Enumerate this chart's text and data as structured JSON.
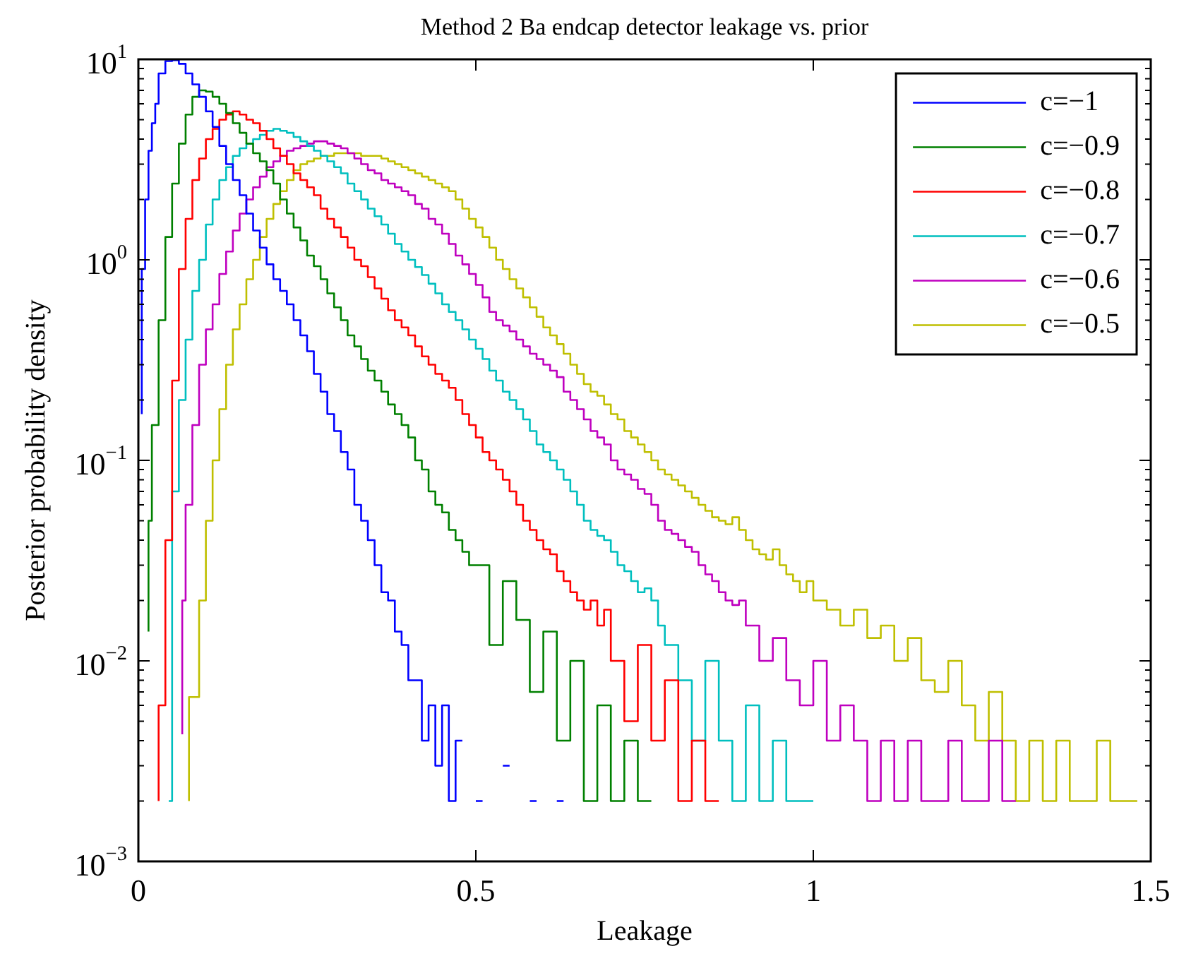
{
  "chart_data": {
    "type": "step",
    "title": "Method 2 Ba endcap detector leakage vs. prior",
    "xlabel": "Leakage",
    "ylabel": "Posterior probability density",
    "log": "y",
    "grid": false,
    "legend": "top right",
    "xlim": [
      0,
      1.5
    ],
    "xticks": [
      0,
      0.5,
      1,
      1.5
    ],
    "ylim": [
      0.001,
      10
    ],
    "yticks": [
      {
        "value": 0.001,
        "label": "10$^{−3}$"
      },
      {
        "value": 0.01,
        "label": "10$^{−2}$"
      },
      {
        "value": 0.1,
        "label": "10$^{−1}$"
      },
      {
        "value": 1,
        "label": "10$^{0}$"
      },
      {
        "value": 10,
        "label": "10$^{1}$"
      }
    ],
    "series": [
      {
        "name": "c=−1",
        "color": "#0000ff",
        "x": [
          0.005,
          0.01,
          0.015,
          0.02,
          0.025,
          0.03,
          0.04,
          0.05,
          0.06,
          0.07,
          0.08,
          0.09,
          0.1,
          0.11,
          0.12,
          0.13,
          0.14,
          0.15,
          0.16,
          0.17,
          0.18,
          0.19,
          0.2,
          0.21,
          0.22,
          0.23,
          0.24,
          0.25,
          0.26,
          0.27,
          0.28,
          0.29,
          0.3,
          0.31,
          0.32,
          0.33,
          0.34,
          0.35,
          0.36,
          0.37,
          0.38,
          0.39,
          0.4,
          0.41,
          0.42,
          0.43,
          0.44,
          0.45,
          0.46,
          0.47,
          0.48,
          0.49,
          0.5,
          0.51,
          0.52,
          0.54,
          0.55,
          0.56,
          0.58,
          0.59,
          0.6,
          0.62,
          0.63
        ],
        "values": [
          0.17,
          0.9,
          2.0,
          3.5,
          4.8,
          6,
          8.5,
          9.8,
          9.9,
          9.5,
          8.5,
          7.5,
          6.5,
          5.5,
          4.6,
          3.7,
          3.0,
          2.5,
          2.1,
          1.7,
          1.4,
          1.15,
          0.95,
          0.8,
          0.7,
          0.6,
          0.5,
          0.42,
          0.35,
          0.27,
          0.22,
          0.17,
          0.14,
          0.11,
          0.09,
          0.06,
          0.05,
          0.04,
          0.03,
          0.022,
          0.02,
          0.014,
          0.012,
          0.008,
          0.008,
          0.004,
          0.006,
          0.003,
          0.006,
          0.002,
          0.004,
          null,
          0.002,
          0.002,
          null,
          0.003,
          0.003,
          null,
          0.002,
          0.002,
          null,
          0.002,
          0.002
        ]
      },
      {
        "name": "c=−0.9",
        "color": "#008000",
        "x": [
          0.015,
          0.02,
          0.03,
          0.04,
          0.05,
          0.06,
          0.07,
          0.08,
          0.09,
          0.1,
          0.11,
          0.12,
          0.13,
          0.14,
          0.15,
          0.16,
          0.17,
          0.18,
          0.19,
          0.2,
          0.21,
          0.22,
          0.23,
          0.24,
          0.25,
          0.26,
          0.27,
          0.28,
          0.29,
          0.3,
          0.31,
          0.32,
          0.33,
          0.34,
          0.35,
          0.36,
          0.37,
          0.38,
          0.39,
          0.4,
          0.41,
          0.42,
          0.43,
          0.44,
          0.45,
          0.46,
          0.47,
          0.48,
          0.49,
          0.5,
          0.52,
          0.54,
          0.56,
          0.58,
          0.6,
          0.62,
          0.64,
          0.66,
          0.68,
          0.7,
          0.72,
          0.74,
          0.76
        ],
        "values": [
          0.014,
          0.05,
          0.15,
          0.5,
          1.3,
          2.4,
          3.8,
          5.3,
          6.5,
          7.0,
          6.9,
          6.5,
          6.0,
          5.4,
          4.8,
          4.3,
          3.8,
          3.4,
          3.1,
          2.8,
          2.4,
          2.0,
          1.7,
          1.45,
          1.25,
          1.05,
          0.93,
          0.8,
          0.68,
          0.58,
          0.5,
          0.42,
          0.37,
          0.32,
          0.28,
          0.25,
          0.22,
          0.19,
          0.17,
          0.15,
          0.13,
          0.1,
          0.09,
          0.07,
          0.06,
          0.055,
          0.045,
          0.04,
          0.035,
          0.03,
          0.03,
          0.012,
          0.025,
          0.016,
          0.007,
          0.014,
          0.004,
          0.01,
          0.002,
          0.006,
          0.002,
          0.004,
          0.002
        ]
      },
      {
        "name": "c=−0.8",
        "color": "#ff0000",
        "x": [
          0.03,
          0.04,
          0.05,
          0.06,
          0.07,
          0.08,
          0.09,
          0.1,
          0.11,
          0.12,
          0.13,
          0.14,
          0.15,
          0.16,
          0.17,
          0.18,
          0.19,
          0.2,
          0.21,
          0.22,
          0.23,
          0.24,
          0.25,
          0.26,
          0.27,
          0.28,
          0.29,
          0.3,
          0.31,
          0.32,
          0.33,
          0.34,
          0.35,
          0.36,
          0.37,
          0.38,
          0.39,
          0.4,
          0.41,
          0.42,
          0.43,
          0.44,
          0.45,
          0.46,
          0.47,
          0.48,
          0.49,
          0.5,
          0.51,
          0.52,
          0.53,
          0.54,
          0.55,
          0.56,
          0.57,
          0.58,
          0.59,
          0.6,
          0.61,
          0.62,
          0.63,
          0.64,
          0.65,
          0.66,
          0.67,
          0.68,
          0.69,
          0.7,
          0.72,
          0.74,
          0.76,
          0.78,
          0.8,
          0.82,
          0.84,
          0.86
        ],
        "values": [
          0.002,
          0.006,
          0.04,
          0.25,
          0.9,
          1.6,
          2.5,
          3.2,
          4.0,
          4.5,
          5.0,
          5.3,
          5.5,
          5.3,
          5.0,
          4.8,
          4.4,
          4.0,
          3.6,
          3.3,
          3.0,
          2.7,
          2.5,
          2.3,
          2.1,
          1.8,
          1.6,
          1.45,
          1.3,
          1.15,
          1.0,
          0.93,
          0.82,
          0.72,
          0.64,
          0.56,
          0.5,
          0.46,
          0.42,
          0.37,
          0.33,
          0.3,
          0.27,
          0.25,
          0.23,
          0.2,
          0.17,
          0.15,
          0.13,
          0.11,
          0.1,
          0.09,
          0.08,
          0.07,
          0.06,
          0.05,
          0.045,
          0.04,
          0.036,
          0.034,
          0.028,
          0.025,
          0.022,
          0.02,
          0.018,
          0.02,
          0.015,
          0.018,
          0.01,
          0.005,
          0.012,
          0.004,
          0.008,
          0.002,
          0.004,
          0.002
        ]
      },
      {
        "name": "c=−0.7",
        "color": "#00bfbf",
        "x": [
          0.045,
          0.05,
          0.06,
          0.07,
          0.08,
          0.09,
          0.1,
          0.11,
          0.12,
          0.13,
          0.14,
          0.15,
          0.16,
          0.17,
          0.18,
          0.19,
          0.2,
          0.21,
          0.22,
          0.23,
          0.24,
          0.25,
          0.26,
          0.27,
          0.28,
          0.29,
          0.3,
          0.31,
          0.32,
          0.33,
          0.34,
          0.35,
          0.36,
          0.37,
          0.38,
          0.39,
          0.4,
          0.41,
          0.42,
          0.43,
          0.44,
          0.45,
          0.46,
          0.47,
          0.48,
          0.49,
          0.5,
          0.51,
          0.52,
          0.53,
          0.54,
          0.55,
          0.56,
          0.57,
          0.58,
          0.59,
          0.6,
          0.61,
          0.62,
          0.63,
          0.64,
          0.65,
          0.66,
          0.67,
          0.68,
          0.69,
          0.7,
          0.71,
          0.72,
          0.73,
          0.74,
          0.75,
          0.76,
          0.77,
          0.78,
          0.79,
          0.8,
          0.82,
          0.84,
          0.86,
          0.88,
          0.9,
          0.92,
          0.94,
          0.96,
          0.98,
          1.0
        ],
        "values": [
          0.002,
          0.002,
          0.07,
          0.2,
          0.4,
          0.7,
          1.0,
          1.5,
          2.0,
          2.5,
          2.9,
          3.3,
          3.6,
          3.8,
          4.0,
          4.2,
          4.4,
          4.5,
          4.4,
          4.3,
          4.1,
          3.9,
          3.7,
          3.5,
          3.3,
          3.1,
          2.9,
          2.7,
          2.4,
          2.2,
          2.0,
          1.8,
          1.65,
          1.5,
          1.35,
          1.2,
          1.1,
          1.0,
          0.92,
          0.84,
          0.76,
          0.68,
          0.6,
          0.55,
          0.5,
          0.45,
          0.4,
          0.36,
          0.32,
          0.28,
          0.25,
          0.22,
          0.2,
          0.18,
          0.16,
          0.14,
          0.12,
          0.11,
          0.1,
          0.09,
          0.08,
          0.07,
          0.06,
          0.05,
          0.045,
          0.042,
          0.04,
          0.035,
          0.03,
          0.028,
          0.025,
          0.022,
          0.023,
          0.02,
          0.015,
          0.012,
          0.012,
          0.008,
          0.004,
          0.01,
          0.004,
          0.002,
          0.006,
          0.002,
          0.004,
          0.002,
          0.002
        ]
      },
      {
        "name": "c=−0.6",
        "color": "#bf00bf",
        "x": [
          0.065,
          0.07,
          0.08,
          0.09,
          0.1,
          0.11,
          0.12,
          0.13,
          0.14,
          0.15,
          0.16,
          0.17,
          0.18,
          0.19,
          0.2,
          0.21,
          0.22,
          0.23,
          0.24,
          0.25,
          0.26,
          0.27,
          0.28,
          0.29,
          0.3,
          0.31,
          0.32,
          0.33,
          0.34,
          0.35,
          0.36,
          0.37,
          0.38,
          0.39,
          0.4,
          0.41,
          0.42,
          0.43,
          0.44,
          0.45,
          0.46,
          0.47,
          0.48,
          0.49,
          0.5,
          0.51,
          0.52,
          0.53,
          0.54,
          0.55,
          0.56,
          0.57,
          0.58,
          0.59,
          0.6,
          0.61,
          0.62,
          0.63,
          0.64,
          0.65,
          0.66,
          0.67,
          0.68,
          0.69,
          0.7,
          0.71,
          0.72,
          0.73,
          0.74,
          0.75,
          0.76,
          0.77,
          0.78,
          0.79,
          0.8,
          0.81,
          0.82,
          0.83,
          0.84,
          0.85,
          0.86,
          0.87,
          0.88,
          0.89,
          0.9,
          0.92,
          0.94,
          0.96,
          0.98,
          1.0,
          1.02,
          1.04,
          1.06,
          1.08,
          1.1,
          1.12,
          1.14,
          1.16,
          1.18,
          1.2,
          1.22,
          1.24,
          1.26,
          1.28,
          1.3
        ],
        "values": [
          0.0043,
          0.02,
          0.06,
          0.15,
          0.3,
          0.45,
          0.6,
          0.85,
          1.1,
          1.4,
          1.7,
          2.0,
          2.3,
          2.6,
          2.9,
          3.1,
          3.3,
          3.5,
          3.6,
          3.7,
          3.8,
          3.9,
          3.9,
          3.8,
          3.7,
          3.6,
          3.4,
          3.2,
          3.0,
          2.8,
          2.7,
          2.5,
          2.4,
          2.3,
          2.2,
          2.1,
          1.9,
          1.8,
          1.6,
          1.5,
          1.35,
          1.2,
          1.05,
          0.95,
          0.85,
          0.75,
          0.65,
          0.55,
          0.5,
          0.47,
          0.44,
          0.4,
          0.37,
          0.34,
          0.32,
          0.3,
          0.28,
          0.26,
          0.22,
          0.2,
          0.18,
          0.16,
          0.14,
          0.13,
          0.12,
          0.1,
          0.09,
          0.085,
          0.08,
          0.072,
          0.068,
          0.06,
          0.05,
          0.045,
          0.043,
          0.04,
          0.037,
          0.035,
          0.03,
          0.027,
          0.025,
          0.022,
          0.02,
          0.019,
          0.02,
          0.015,
          0.01,
          0.013,
          0.008,
          0.006,
          0.01,
          0.004,
          0.006,
          0.004,
          0.002,
          0.004,
          0.002,
          0.004,
          0.002,
          0.002,
          0.004,
          0.002,
          0.002,
          0.004,
          0.002
        ]
      },
      {
        "name": "c=−0.5",
        "color": "#bfbf00",
        "x": [
          0.075,
          0.09,
          0.1,
          0.11,
          0.12,
          0.13,
          0.14,
          0.15,
          0.16,
          0.17,
          0.18,
          0.19,
          0.2,
          0.21,
          0.22,
          0.23,
          0.24,
          0.25,
          0.26,
          0.27,
          0.28,
          0.29,
          0.3,
          0.31,
          0.32,
          0.33,
          0.34,
          0.35,
          0.36,
          0.37,
          0.38,
          0.39,
          0.4,
          0.41,
          0.42,
          0.43,
          0.44,
          0.45,
          0.46,
          0.47,
          0.48,
          0.49,
          0.5,
          0.51,
          0.52,
          0.53,
          0.54,
          0.55,
          0.56,
          0.57,
          0.58,
          0.59,
          0.6,
          0.61,
          0.62,
          0.63,
          0.64,
          0.65,
          0.66,
          0.67,
          0.68,
          0.69,
          0.7,
          0.71,
          0.72,
          0.73,
          0.74,
          0.75,
          0.76,
          0.77,
          0.78,
          0.79,
          0.8,
          0.81,
          0.82,
          0.83,
          0.84,
          0.85,
          0.86,
          0.87,
          0.88,
          0.89,
          0.9,
          0.91,
          0.92,
          0.93,
          0.94,
          0.95,
          0.96,
          0.97,
          0.98,
          0.99,
          1.0,
          1.02,
          1.04,
          1.06,
          1.08,
          1.1,
          1.12,
          1.14,
          1.16,
          1.18,
          1.2,
          1.22,
          1.24,
          1.26,
          1.28,
          1.3,
          1.32,
          1.34,
          1.36,
          1.38,
          1.4,
          1.42,
          1.44,
          1.46,
          1.48
        ],
        "values": [
          0.002,
          0.0066,
          0.02,
          0.05,
          0.1,
          0.18,
          0.3,
          0.45,
          0.6,
          0.8,
          1.0,
          1.3,
          1.6,
          1.9,
          2.2,
          2.5,
          2.8,
          3.0,
          3.1,
          3.2,
          3.3,
          3.3,
          3.4,
          3.4,
          3.4,
          3.4,
          3.3,
          3.3,
          3.3,
          3.2,
          3.1,
          3.0,
          2.9,
          2.8,
          2.7,
          2.6,
          2.5,
          2.4,
          2.3,
          2.2,
          2.0,
          1.8,
          1.6,
          1.45,
          1.3,
          1.15,
          1.0,
          0.9,
          0.8,
          0.72,
          0.65,
          0.58,
          0.52,
          0.46,
          0.42,
          0.38,
          0.34,
          0.3,
          0.27,
          0.24,
          0.22,
          0.21,
          0.19,
          0.17,
          0.16,
          0.14,
          0.13,
          0.12,
          0.11,
          0.1,
          0.09,
          0.085,
          0.08,
          0.075,
          0.07,
          0.065,
          0.06,
          0.056,
          0.052,
          0.05,
          0.048,
          0.052,
          0.045,
          0.04,
          0.036,
          0.034,
          0.032,
          0.036,
          0.03,
          0.027,
          0.025,
          0.022,
          0.025,
          0.02,
          0.018,
          0.015,
          0.018,
          0.013,
          0.015,
          0.01,
          0.013,
          0.008,
          0.007,
          0.01,
          0.006,
          0.004,
          0.007,
          0.004,
          0.002,
          0.004,
          0.002,
          0.004,
          0.002,
          0.002,
          0.004,
          0.002,
          0.002
        ]
      }
    ]
  }
}
